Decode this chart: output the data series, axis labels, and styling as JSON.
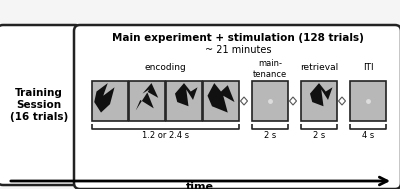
{
  "outer_bg": "#f5f5f5",
  "box_bg": "#ffffff",
  "title_main": "Main experiment + stimulation (128 trials)",
  "subtitle_main": "~ 21 minutes",
  "title_train": "Training\nSession\n(16 trials)",
  "label_encoding": "encoding",
  "label_maintenance": "main-\ntenance",
  "label_retrieval": "retrieval",
  "label_iti": "ITI",
  "label_time": "1.2 or 2.4 s",
  "label_2s_1": "2 s",
  "label_2s_2": "2 s",
  "label_4s": "4 s",
  "arrow_label": "time",
  "grey_box_color": "#b8b8b8",
  "box_edge": "#222222",
  "dot_color": "#dddddd",
  "bracket_color": "#222222",
  "diamond_color": "#e0e0e0",
  "silhouette_color": "#111111"
}
